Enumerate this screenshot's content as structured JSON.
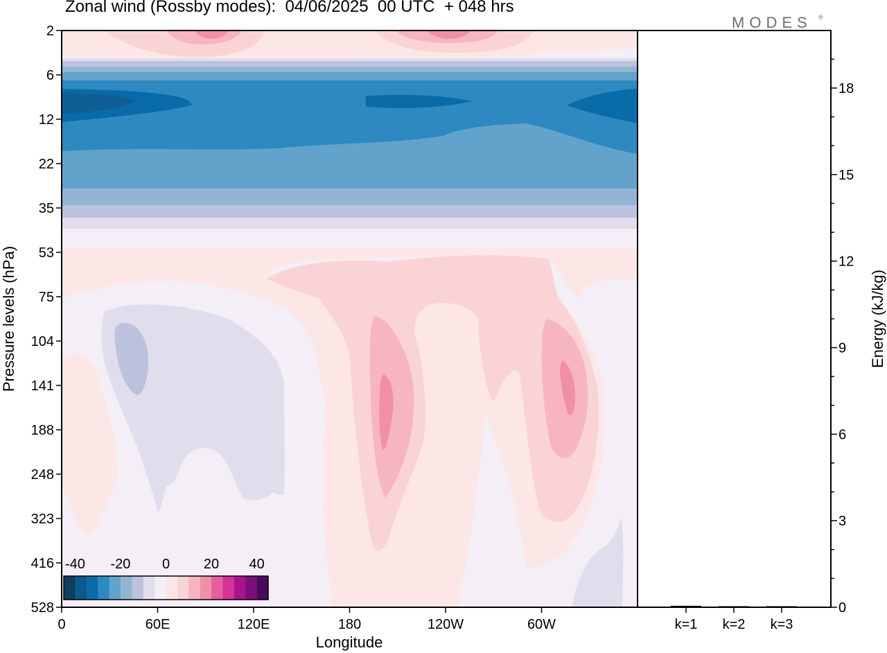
{
  "title": "Zonal wind (Rossby modes):  04/06/2025  00 UTC  + 048 hrs",
  "brand": {
    "name": "MODES",
    "mark": "®"
  },
  "chart_data": [
    {
      "type": "heatmap",
      "variable": "Zonal wind (Rossby modes)",
      "xlabel": "Longitude",
      "ylabel": "Pressure levels (hPa)",
      "x_ticks": [
        "0",
        "60E",
        "120E",
        "180",
        "120W",
        "60W"
      ],
      "y_ticks": [
        "2",
        "6",
        "12",
        "22",
        "35",
        "53",
        "75",
        "104",
        "141",
        "188",
        "248",
        "323",
        "416",
        "528"
      ],
      "xlim": [
        0,
        360
      ],
      "y_scale": "log-pressure",
      "colorbar": {
        "tick_labels": [
          "-40",
          "-20",
          "0",
          "20",
          "40"
        ],
        "levels": [
          -40,
          -35,
          -30,
          -25,
          -20,
          -15,
          -10,
          -5,
          0,
          5,
          10,
          15,
          20,
          25,
          30,
          35,
          40
        ],
        "colors": [
          "#0d3e5f",
          "#0a5a8c",
          "#0a6ba9",
          "#2d89c0",
          "#62a3cc",
          "#94b4d6",
          "#bcc2de",
          "#e0deec",
          "#f4eef6",
          "#fde6e6",
          "#fad3d6",
          "#f6b5c0",
          "#f18fa9",
          "#e85f9e",
          "#d6339a",
          "#a8158a",
          "#7a0f7a",
          "#4a0b5c"
        ]
      },
      "features": [
        {
          "name": "upper easterly jet core",
          "approx_value": -30
        },
        {
          "name": "top-level westerlies",
          "approx_value": 15
        },
        {
          "name": "positive anomaly near 165W",
          "approx_value": 20
        },
        {
          "name": "positive anomaly near 50W",
          "approx_value": 20
        },
        {
          "name": "negative anomaly near 40E",
          "approx_value": -5
        }
      ]
    },
    {
      "type": "bar",
      "categories": [
        "k=1",
        "k=2",
        "k=3"
      ],
      "values": [
        0.05,
        0.02,
        0.02
      ],
      "ylabel": "Energy (kJ/kg)",
      "ylim": [
        0,
        20
      ],
      "y_ticks": [
        "0",
        "3",
        "6",
        "9",
        "12",
        "15",
        "18"
      ]
    }
  ]
}
